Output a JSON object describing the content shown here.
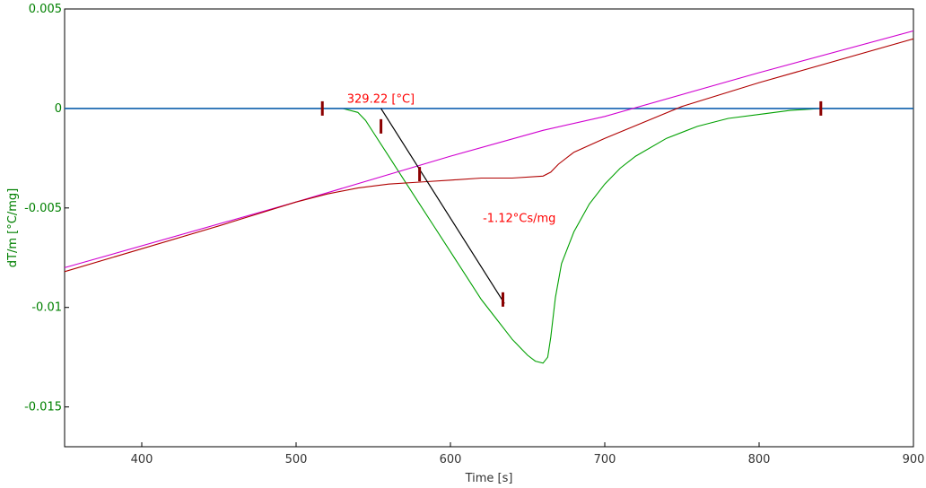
{
  "chart_data": {
    "type": "line",
    "title": "",
    "xlabel": "Time [s]",
    "ylabel": "dT/m  [°C/mg]",
    "xlim": [
      350,
      900
    ],
    "ylim": [
      -0.017,
      0.005
    ],
    "x_ticks": [
      400,
      500,
      600,
      700,
      800,
      900
    ],
    "x_tick_labels": [
      "400",
      "500",
      "600",
      "700",
      "800",
      "900"
    ],
    "y_ticks": [
      0.005,
      0,
      -0.005,
      -0.01,
      -0.015
    ],
    "y_tick_labels": [
      "0.005",
      "0",
      "-0.005",
      "-0.01",
      "-0.015"
    ],
    "grid": false,
    "series": [
      {
        "color": "#00a000",
        "x": [
          350,
          400,
          450,
          500,
          530,
          540,
          545,
          550,
          555,
          560,
          570,
          580,
          590,
          600,
          610,
          620,
          630,
          635,
          640,
          645,
          650,
          655,
          660,
          663,
          665,
          668,
          672,
          680,
          690,
          700,
          710,
          720,
          740,
          760,
          780,
          800,
          820,
          840,
          860,
          880,
          900
        ],
        "y": [
          0,
          0,
          0,
          0,
          0,
          -0.0002,
          -0.0006,
          -0.0012,
          -0.0018,
          -0.0024,
          -0.0036,
          -0.0048,
          -0.006,
          -0.0072,
          -0.0084,
          -0.0096,
          -0.0106,
          -0.0111,
          -0.0116,
          -0.012,
          -0.0124,
          -0.0127,
          -0.0128,
          -0.0125,
          -0.0115,
          -0.0095,
          -0.0078,
          -0.0062,
          -0.0048,
          -0.0038,
          -0.003,
          -0.0024,
          -0.0015,
          -0.0009,
          -0.0005,
          -0.0003,
          -0.0001,
          0,
          0,
          0,
          0
        ]
      },
      {
        "color": "#1060b0",
        "x": [
          350,
          900
        ],
        "y": [
          0,
          0
        ]
      },
      {
        "color": "#d000d0",
        "x": [
          350,
          500,
          600,
          660,
          700,
          800,
          900
        ],
        "y": [
          -0.008,
          -0.0047,
          -0.0024,
          -0.0011,
          -0.0004,
          0.0018,
          0.0039
        ]
      },
      {
        "color": "#b00000",
        "x": [
          350,
          450,
          500,
          520,
          540,
          560,
          580,
          600,
          620,
          640,
          660,
          665,
          670,
          680,
          700,
          750,
          800,
          900
        ],
        "y": [
          -0.0082,
          -0.0059,
          -0.0047,
          -0.0043,
          -0.004,
          -0.0038,
          -0.0037,
          -0.0036,
          -0.0035,
          -0.0035,
          -0.0034,
          -0.0032,
          -0.0028,
          -0.0022,
          -0.0015,
          0.0001,
          0.0013,
          0.0035
        ]
      }
    ],
    "tangent_line": {
      "x": [
        555,
        635
      ],
      "y": [
        0,
        -0.0098
      ],
      "color": "#000000"
    },
    "markers": [
      {
        "x": 517,
        "y": 0
      },
      {
        "x": 555,
        "y": -0.0009
      },
      {
        "x": 580,
        "y": -0.0033
      },
      {
        "x": 634,
        "y": -0.0096
      },
      {
        "x": 840,
        "y": 0
      }
    ],
    "annotations": [
      {
        "text": "329.22 [°C]",
        "x": 533,
        "y": 0.0003,
        "color": "#ff0000"
      },
      {
        "text": "-1.12°Cs/mg",
        "x": 621,
        "y": -0.0057,
        "color": "#ff0000"
      }
    ]
  }
}
